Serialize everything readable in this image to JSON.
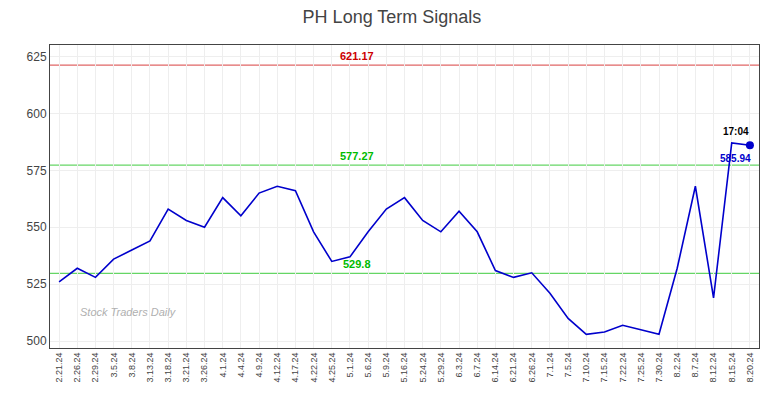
{
  "chart_data": {
    "type": "line",
    "title": "PH Long Term Signals",
    "categories": [
      "2.21.24",
      "2.26.24",
      "2.29.24",
      "3.5.24",
      "3.8.24",
      "3.13.24",
      "3.18.24",
      "3.21.24",
      "3.26.24",
      "4.1.24",
      "4.4.24",
      "4.9.24",
      "4.12.24",
      "4.17.24",
      "4.22.24",
      "4.25.24",
      "5.1.24",
      "5.6.24",
      "5.9.24",
      "5.16.24",
      "5.24.24",
      "5.29.24",
      "6.3.24",
      "6.7.24",
      "6.14.24",
      "6.21.24",
      "6.26.24",
      "7.1.24",
      "7.5.24",
      "7.10.24",
      "7.15.24",
      "7.22.24",
      "7.25.24",
      "7.30.24",
      "8.2.24",
      "8.7.24",
      "8.12.24",
      "8.15.24",
      "8.20.24"
    ],
    "values": [
      526,
      532,
      528,
      536,
      540,
      544,
      558,
      553,
      550,
      563,
      555,
      565,
      568,
      566,
      548,
      535,
      537,
      548,
      558,
      563,
      553,
      548,
      557,
      548,
      531,
      528,
      530,
      521,
      510,
      503,
      504,
      507,
      505,
      503,
      532,
      568,
      519,
      587,
      586
    ],
    "color": "#0000cc",
    "ylim": [
      497,
      630
    ],
    "yticks": [
      500,
      525,
      550,
      575,
      600,
      625
    ],
    "grid": true,
    "reference_lines": [
      {
        "value": 621.17,
        "label": "621.17",
        "color": "#cc0000"
      },
      {
        "value": 577.27,
        "label": "577.27",
        "color": "#00bb00"
      },
      {
        "value": 529.8,
        "label": "529.8",
        "color": "#00bb00"
      }
    ],
    "last_point_labels": [
      "17:04",
      "585.94"
    ],
    "watermark": "Stock Traders Daily"
  }
}
